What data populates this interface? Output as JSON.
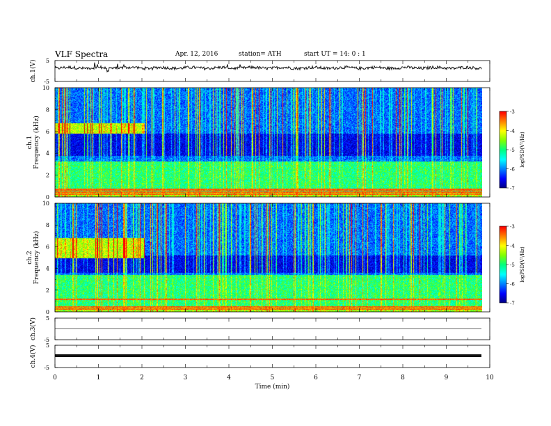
{
  "header": {
    "title": "VLF Spectra",
    "date": "Apr. 12, 2016",
    "station": "station= ATH",
    "start": "start  UT =    14: 0  : 1"
  },
  "colors": {
    "trace": "#111111",
    "colormap": [
      "#000080",
      "#0000ff",
      "#0080ff",
      "#00ffff",
      "#00ff80",
      "#80ff00",
      "#ffff00",
      "#ff8000",
      "#ff0000",
      "#ffffff"
    ]
  },
  "chart_data": [
    {
      "type": "line",
      "panel": "ch1-waveform",
      "ylabel": "ch.1(V)",
      "ylim": [
        -5,
        5
      ],
      "yticks": [
        "5",
        "-5"
      ],
      "baseline": 1.5,
      "noise": "dense waveform with spikes near 0.9–1.6 min"
    },
    {
      "type": "heatmap",
      "panel": "ch1-spectrogram",
      "ylabel": "ch.1\nFrequency (kHz)",
      "ylim": [
        0,
        10
      ],
      "yticks": [
        "0",
        "2",
        "4",
        "6",
        "8",
        "10"
      ],
      "colorbar": {
        "label": "logPSD(V²/Hz)",
        "range": [
          -7,
          -3
        ],
        "ticks": [
          "-3",
          "-4",
          "-5",
          "-6",
          "-7"
        ]
      },
      "features": {
        "emission_band_khz": [
          5.8,
          6.8
        ],
        "emission_until_min": 2.05,
        "quiet_band_khz": [
          3.8,
          5.8
        ],
        "background_band_khz": [
          0.5,
          3.3
        ],
        "tone_lines_khz": [
          0.3,
          0.5,
          0.7
        ]
      }
    },
    {
      "type": "heatmap",
      "panel": "ch2-spectrogram",
      "ylabel": "ch.2\nFrequency (kHz)",
      "ylim": [
        0,
        10
      ],
      "yticks": [
        "0",
        "2",
        "4",
        "6",
        "8",
        "10"
      ],
      "colorbar": {
        "label": "logPSD(V²/Hz)",
        "range": [
          -7,
          -3
        ],
        "ticks": [
          "-3",
          "-4",
          "-5",
          "-6",
          "-7"
        ]
      },
      "features": {
        "emission_band_khz": [
          5.0,
          6.8
        ],
        "emission_until_min": 2.05,
        "quiet_band_khz": [
          3.6,
          5.2
        ],
        "background_band_khz": [
          0.5,
          3.4
        ],
        "tone_lines_khz": [
          0.3,
          0.5,
          1.2
        ]
      }
    },
    {
      "type": "line",
      "panel": "ch3-waveform",
      "ylabel": "ch.3(V)",
      "ylim": [
        -5,
        5
      ],
      "yticks": [
        "5",
        "-5"
      ],
      "baseline": 0.2,
      "noise": "flat"
    },
    {
      "type": "line",
      "panel": "ch4-waveform",
      "ylabel": "ch.4(V)",
      "ylim": [
        -5,
        5
      ],
      "yticks": [
        "5",
        "-5"
      ],
      "baseline": 0.3,
      "noise": "thick flat band"
    }
  ],
  "xaxis": {
    "label": "Time  (min)",
    "range": [
      0,
      10
    ],
    "data_end": 9.82,
    "ticks": [
      "0",
      "1",
      "2",
      "3",
      "4",
      "5",
      "6",
      "7",
      "8",
      "9",
      "10"
    ]
  }
}
